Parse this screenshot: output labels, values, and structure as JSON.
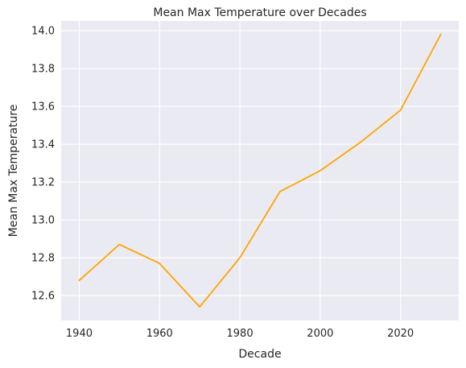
{
  "chart_data": {
    "type": "line",
    "title": "Mean Max Temperature over Decades",
    "xlabel": "Decade",
    "ylabel": "Mean Max Temperature",
    "x": [
      1940,
      1950,
      1960,
      1970,
      1980,
      1990,
      2000,
      2010,
      2020,
      2030
    ],
    "series": [
      {
        "values": [
          12.68,
          12.87,
          12.77,
          12.54,
          12.8,
          13.15,
          13.26,
          13.41,
          13.58,
          13.98
        ],
        "color": "#FFA500"
      }
    ],
    "xlim": [
      1935.5,
      2034.5
    ],
    "ylim": [
      12.468,
      14.052
    ],
    "xticks": [
      1940,
      1960,
      1980,
      2000,
      2020
    ],
    "xtick_labels": [
      "1940",
      "1960",
      "1980",
      "2000",
      "2020"
    ],
    "yticks": [
      12.6,
      12.8,
      13.0,
      13.2,
      13.4,
      13.6,
      13.8,
      14.0
    ],
    "ytick_labels": [
      "12.6",
      "12.8",
      "13.0",
      "13.2",
      "13.4",
      "13.6",
      "13.8",
      "14.0"
    ],
    "grid": true,
    "background_color": "#EAEAF2"
  }
}
